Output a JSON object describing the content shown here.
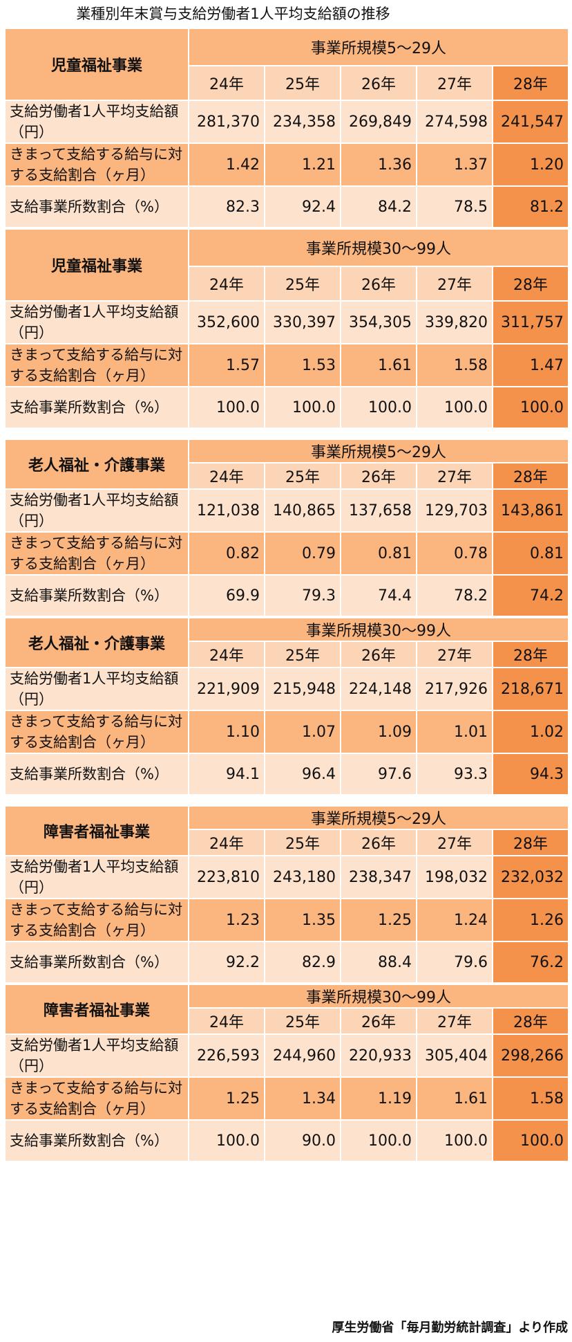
{
  "title": "業種別年末賞与支給労働者1人平均支給額の推移",
  "source": "厚生労働省「毎月勤労統計調査」より作成",
  "colors": {
    "header": "#fbb57f",
    "year_row": "#fcd5b6",
    "light_row": "#fde3ce",
    "highlight_28": "#f4914a"
  },
  "chart_data": {
    "type": "table",
    "title": "業種別年末賞与支給労働者1人平均支給額の推移",
    "years": [
      "24年",
      "25年",
      "26年",
      "27年",
      "28年"
    ],
    "row_labels": [
      "支給労働者1人平均支給額（円）",
      "きまって支給する給与に対する支給割合（ヶ月）",
      "支給事業所数割合（%）"
    ],
    "blocks": [
      {
        "category": "児童福祉事業",
        "size": "事業所規模5～29人",
        "rows": [
          [
            "281,370",
            "234,358",
            "269,849",
            "274,598",
            "241,547"
          ],
          [
            "1.42",
            "1.21",
            "1.36",
            "1.37",
            "1.20"
          ],
          [
            "82.3",
            "92.4",
            "84.2",
            "78.5",
            "81.2"
          ]
        ]
      },
      {
        "category": "児童福祉事業",
        "size": "事業所規模30～99人",
        "rows": [
          [
            "352,600",
            "330,397",
            "354,305",
            "339,820",
            "311,757"
          ],
          [
            "1.57",
            "1.53",
            "1.61",
            "1.58",
            "1.47"
          ],
          [
            "100.0",
            "100.0",
            "100.0",
            "100.0",
            "100.0"
          ]
        ]
      },
      {
        "category": "老人福祉・介護事業",
        "size": "事業所規模5～29人",
        "rows": [
          [
            "121,038",
            "140,865",
            "137,658",
            "129,703",
            "143,861"
          ],
          [
            "0.82",
            "0.79",
            "0.81",
            "0.78",
            "0.81"
          ],
          [
            "69.9",
            "79.3",
            "74.4",
            "78.2",
            "74.2"
          ]
        ]
      },
      {
        "category": "老人福祉・介護事業",
        "size": "事業所規模30～99人",
        "rows": [
          [
            "221,909",
            "215,948",
            "224,148",
            "217,926",
            "218,671"
          ],
          [
            "1.10",
            "1.07",
            "1.09",
            "1.01",
            "1.02"
          ],
          [
            "94.1",
            "96.4",
            "97.6",
            "93.3",
            "94.3"
          ]
        ]
      },
      {
        "category": "障害者福祉事業",
        "size": "事業所規模5～29人",
        "rows": [
          [
            "223,810",
            "243,180",
            "238,347",
            "198,032",
            "232,032"
          ],
          [
            "1.23",
            "1.35",
            "1.25",
            "1.24",
            "1.26"
          ],
          [
            "92.2",
            "82.9",
            "88.4",
            "79.6",
            "76.2"
          ]
        ]
      },
      {
        "category": "障害者福祉事業",
        "size": "事業所規模30～99人",
        "rows": [
          [
            "226,593",
            "244,960",
            "220,933",
            "305,404",
            "298,266"
          ],
          [
            "1.25",
            "1.34",
            "1.19",
            "1.61",
            "1.58"
          ],
          [
            "100.0",
            "90.0",
            "100.0",
            "100.0",
            "100.0"
          ]
        ]
      }
    ]
  }
}
